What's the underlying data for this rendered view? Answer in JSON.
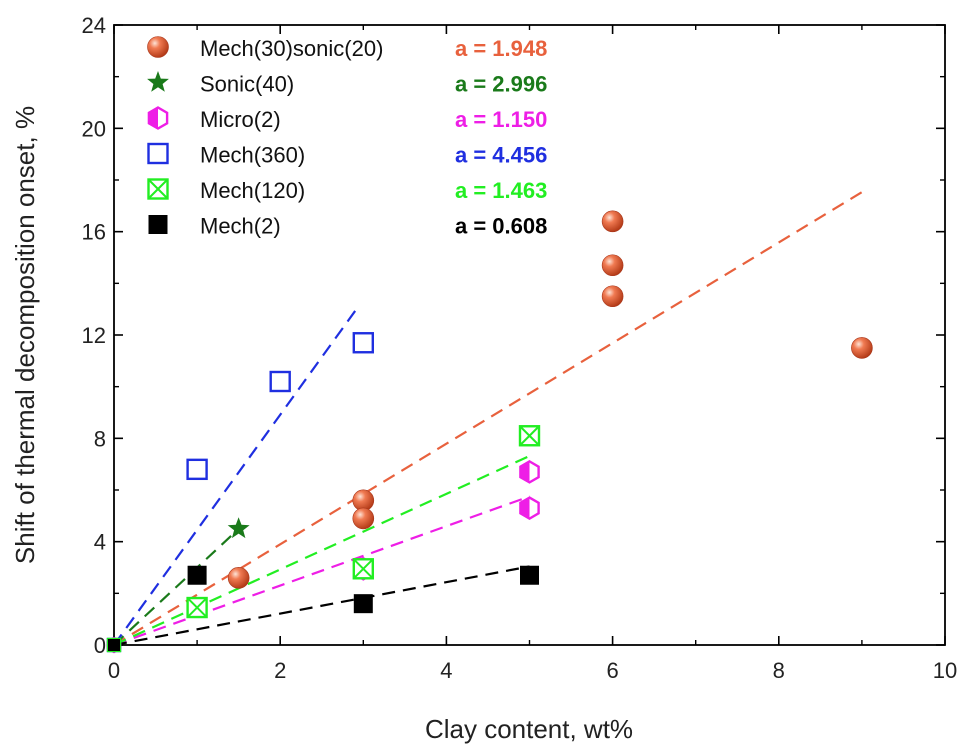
{
  "chart_data": {
    "type": "scatter",
    "xlabel": "Clay content, wt%",
    "ylabel": "Shift of thermal decomposition onset, %",
    "xlim": [
      0,
      10
    ],
    "ylim": [
      0,
      24
    ],
    "x_ticks": [
      0,
      2,
      4,
      6,
      8,
      10
    ],
    "y_ticks": [
      0,
      4,
      8,
      12,
      16,
      20,
      24
    ],
    "legend_position": "top-left",
    "series": [
      {
        "name": "Mech(30)sonic(20)",
        "marker": "sphere",
        "color": "#e8613d",
        "slope_label": "a = 1.948",
        "slope": 1.948,
        "fit_x_max": 9,
        "points": [
          [
            1.5,
            2.6
          ],
          [
            3,
            5.6
          ],
          [
            3,
            4.9
          ],
          [
            6,
            16.4
          ],
          [
            6,
            14.7
          ],
          [
            6,
            13.5
          ],
          [
            9,
            11.5
          ]
        ]
      },
      {
        "name": "Sonic(40)",
        "marker": "star",
        "color": "#1a7a1a",
        "slope_label": "a = 2.996",
        "slope": 2.996,
        "fit_x_max": 1.5,
        "points": [
          [
            1.5,
            4.5
          ]
        ]
      },
      {
        "name": "Micro(2)",
        "marker": "hexagon-half",
        "color": "#ee1ee6",
        "slope_label": "a = 1.150",
        "slope": 1.15,
        "fit_x_max": 5,
        "points": [
          [
            3,
            2.95
          ],
          [
            5,
            6.7
          ],
          [
            5,
            5.3
          ]
        ]
      },
      {
        "name": "Mech(360)",
        "marker": "open-square",
        "color": "#1f2fe0",
        "slope_label": "a = 4.456",
        "slope": 4.456,
        "fit_x_max": 2.95,
        "points": [
          [
            1,
            6.8
          ],
          [
            2,
            10.2
          ],
          [
            3,
            11.7
          ]
        ]
      },
      {
        "name": "Mech(120)",
        "marker": "crossed-square",
        "color": "#22ee22",
        "slope_label": "a = 1.463",
        "slope": 1.463,
        "fit_x_max": 5,
        "points": [
          [
            1,
            1.45
          ],
          [
            3,
            2.95
          ],
          [
            5,
            8.1
          ]
        ]
      },
      {
        "name": "Mech(2)",
        "marker": "filled-square",
        "color": "#000000",
        "slope_label": "a = 0.608",
        "slope": 0.608,
        "fit_x_max": 5,
        "points": [
          [
            1,
            2.7
          ],
          [
            3,
            1.6
          ],
          [
            5,
            2.7
          ]
        ]
      }
    ]
  }
}
